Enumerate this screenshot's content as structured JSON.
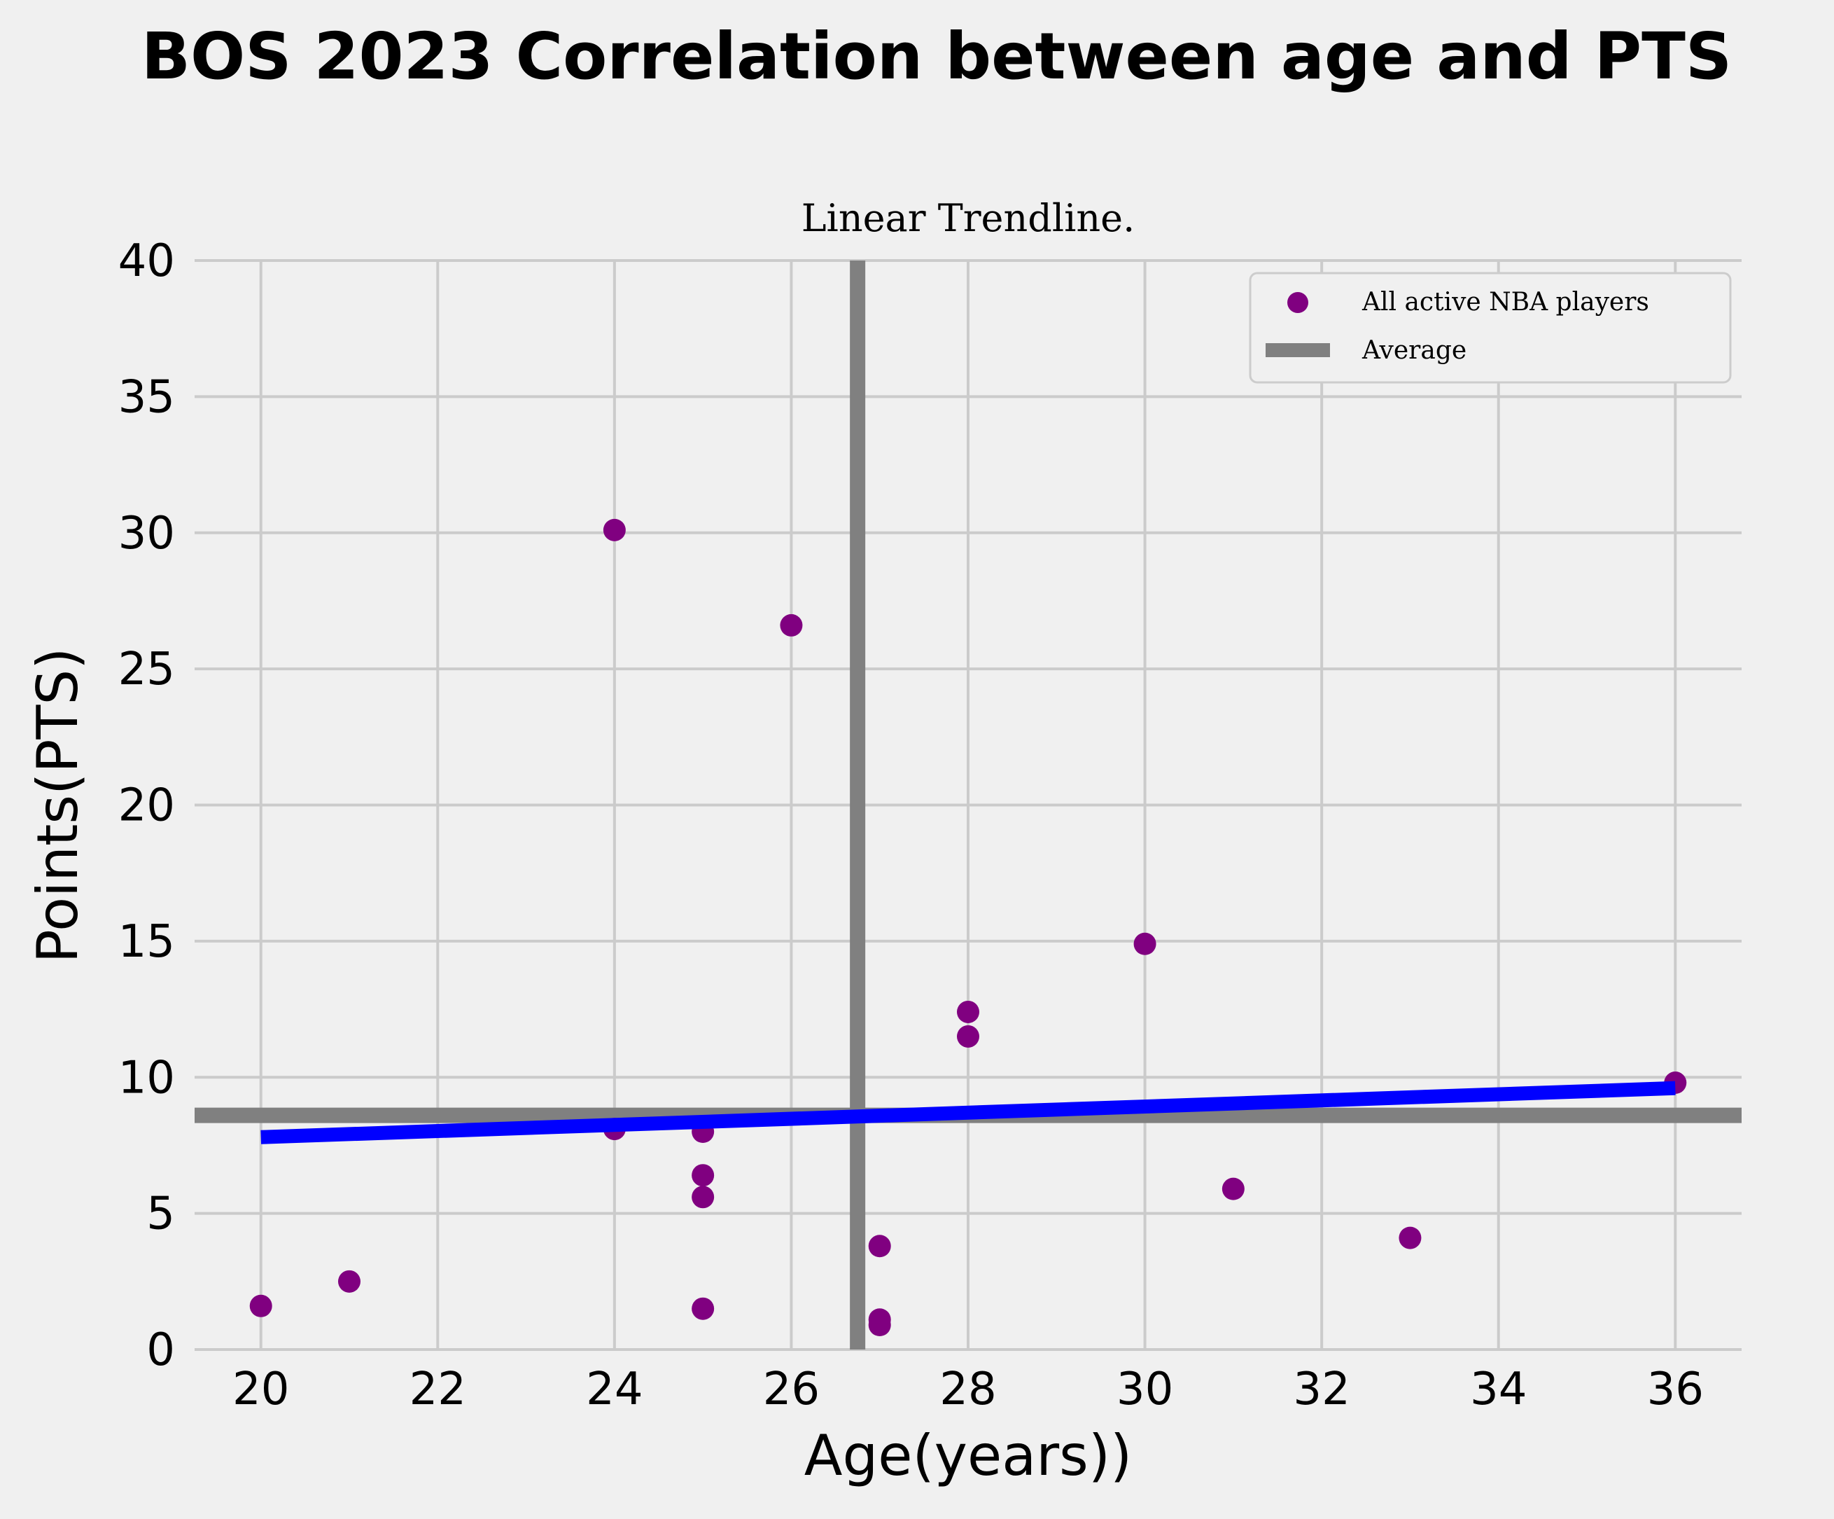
{
  "chart_data": {
    "type": "scatter",
    "title": "BOS 2023 Correlation between age and PTS",
    "subtitle": "Linear Trendline.",
    "xlabel": "Age(years))",
    "ylabel": "Points(PTS)",
    "xlim": [
      19.25,
      36.75
    ],
    "ylim": [
      0,
      40
    ],
    "x_ticks": [
      20,
      22,
      24,
      26,
      28,
      30,
      32,
      34,
      36
    ],
    "x_tick_labels": [
      "20",
      "22",
      "24",
      "26",
      "28",
      "30",
      "32",
      "34",
      "36"
    ],
    "y_ticks": [
      0,
      5,
      10,
      15,
      20,
      25,
      30,
      35,
      40
    ],
    "y_tick_labels": [
      "0",
      "5",
      "10",
      "15",
      "20",
      "25",
      "30",
      "35",
      "40"
    ],
    "grid": true,
    "legend_position": "top-right",
    "series": [
      {
        "name": "All active NBA players",
        "kind": "scatter",
        "color": "#800080",
        "points": [
          {
            "x": 20,
            "y": 1.6
          },
          {
            "x": 21,
            "y": 2.5
          },
          {
            "x": 24,
            "y": 30.1
          },
          {
            "x": 24,
            "y": 8.1
          },
          {
            "x": 25,
            "y": 8.0
          },
          {
            "x": 25,
            "y": 6.4
          },
          {
            "x": 25,
            "y": 5.6
          },
          {
            "x": 25,
            "y": 1.5
          },
          {
            "x": 26,
            "y": 26.6
          },
          {
            "x": 27,
            "y": 3.8
          },
          {
            "x": 27,
            "y": 1.1
          },
          {
            "x": 27,
            "y": 0.9
          },
          {
            "x": 28,
            "y": 12.4
          },
          {
            "x": 28,
            "y": 11.5
          },
          {
            "x": 30,
            "y": 14.9
          },
          {
            "x": 31,
            "y": 5.9
          },
          {
            "x": 33,
            "y": 4.1
          },
          {
            "x": 36,
            "y": 9.8
          }
        ]
      },
      {
        "name": "Average",
        "kind": "average-lines",
        "color": "#808080",
        "x_mean": 26.75,
        "y_mean": 8.6
      },
      {
        "kind": "trendline",
        "color": "#0000ff",
        "x": [
          20,
          36
        ],
        "y": [
          7.8,
          9.6
        ]
      }
    ]
  }
}
